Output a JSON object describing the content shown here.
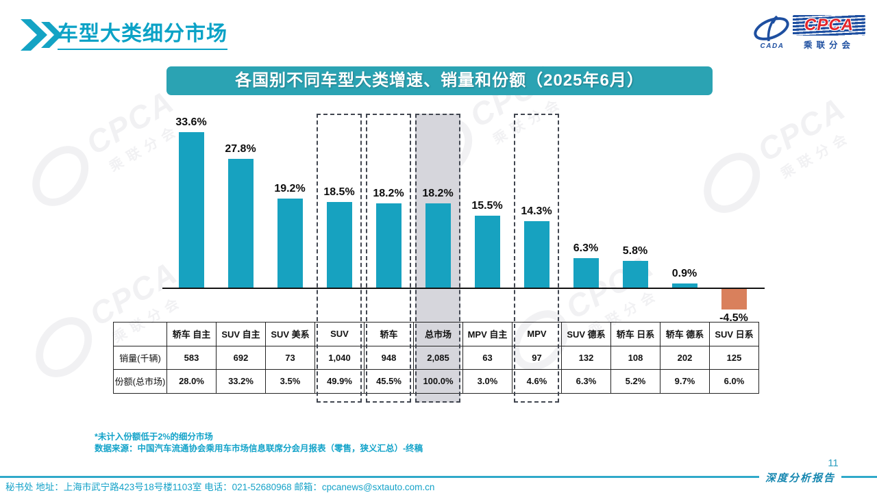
{
  "page": {
    "title": "车型大类细分市场",
    "page_number": "11",
    "report_label": "深度分析报告",
    "footer_contact": "秘书处  地址：上海市武宁路423号18号楼1103室 电话：021-52680968   邮箱：cpcanews@sxtauto.com.cn"
  },
  "logo": {
    "abbr": "CPCA",
    "cn_name": "乘联分会",
    "left_abbr": "CADA"
  },
  "banner": {
    "title": "各国别不同车型大类增速、销量和份额（2025年6月）"
  },
  "notes": {
    "line1": "*未计入份额低于2%的细分市场",
    "line2": "数据来源：中国汽车流通协会乘用车市场信息联席分会月报表（零售，狭义汇总）-终稿"
  },
  "watermark": {
    "cpca": "CPCA",
    "sub": "乘联分会"
  },
  "chart_data": {
    "type": "bar",
    "title": "各国别不同车型大类增速、销量和份额（2025年6月）",
    "categories": [
      "轿车 自主",
      "SUV 自主",
      "SUV 美系",
      "SUV",
      "轿车",
      "总市场",
      "MPV 自主",
      "MPV",
      "SUV 德系",
      "轿车 日系",
      "轿车 德系",
      "SUV 日系"
    ],
    "series": [
      {
        "name": "增速",
        "unit": "%",
        "values": [
          33.6,
          27.8,
          19.2,
          18.5,
          18.2,
          18.2,
          15.5,
          14.3,
          6.3,
          5.8,
          0.9,
          -4.5
        ]
      },
      {
        "name": "销量(千辆)",
        "values": [
          "583",
          "692",
          "73",
          "1,040",
          "948",
          "2,085",
          "63",
          "97",
          "132",
          "108",
          "202",
          "125"
        ]
      },
      {
        "name": "份额(总市场)",
        "values": [
          "28.0%",
          "33.2%",
          "3.5%",
          "49.9%",
          "45.5%",
          "100.0%",
          "3.0%",
          "4.6%",
          "6.3%",
          "5.2%",
          "9.7%",
          "6.0%"
        ]
      }
    ],
    "table_row_labels": [
      "销量(千辆)",
      "份额(总市场)"
    ],
    "dashed_highlight": [
      "SUV",
      "轿车",
      "总市场",
      "MPV"
    ],
    "filled_highlight": [
      "总市场"
    ],
    "bar_color": "#17a2c0",
    "negative_bar_color": "#d9805c",
    "highlight_fill_color": "#d6d6dc",
    "ylim": [
      -6,
      36
    ],
    "grid": false,
    "legend": false
  }
}
